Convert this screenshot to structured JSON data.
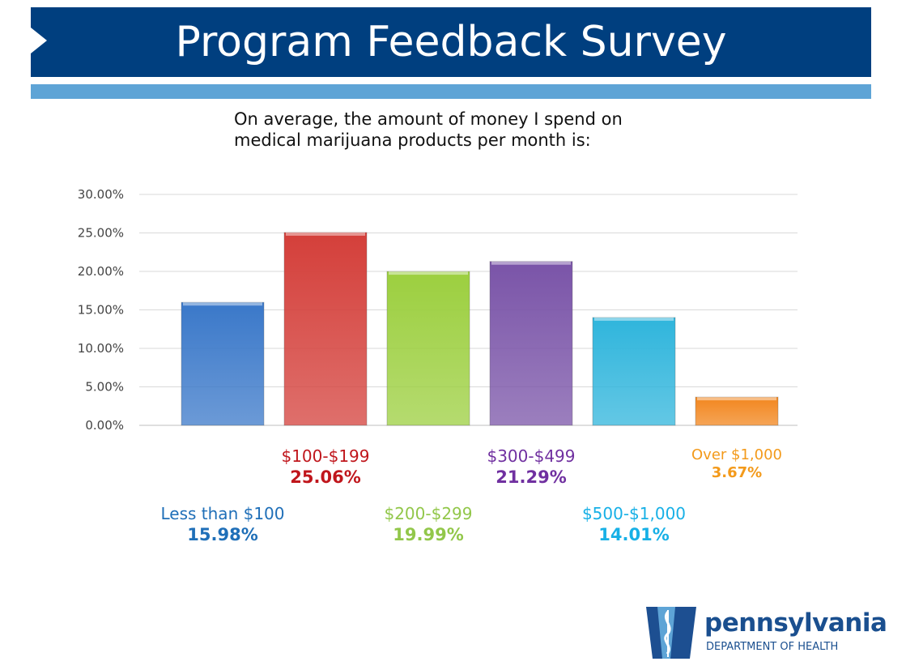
{
  "header": {
    "title": "Program Feedback Survey"
  },
  "question": "On average, the amount of money I spend on\nmedical marijuana products per month is:",
  "colors": {
    "title_bar": "#003f7f",
    "sub_bar": "#5ea4d6"
  },
  "chart_data": {
    "type": "bar",
    "title": "",
    "xlabel": "",
    "ylabel": "",
    "ylim": [
      0,
      30
    ],
    "y_ticks": [
      "0.00%",
      "5.00%",
      "10.00%",
      "15.00%",
      "20.00%",
      "25.00%",
      "30.00%"
    ],
    "grid": true,
    "categories": [
      "Less than $100",
      "$100-$199",
      "$200-$299",
      "$300-$499",
      "$500-$1,000",
      "Over $1,000"
    ],
    "values": [
      15.98,
      25.06,
      19.99,
      21.29,
      14.01,
      3.67
    ],
    "value_labels": [
      "15.98%",
      "25.06%",
      "19.99%",
      "21.29%",
      "14.01%",
      "3.67%"
    ],
    "bar_colors": [
      "#3a78c9",
      "#d43f3a",
      "#9ccf3f",
      "#7a54a8",
      "#2fb5dc",
      "#f2861e"
    ],
    "label_colors": [
      "#1f6fb8",
      "#c0161c",
      "#92c74a",
      "#7030a0",
      "#17b0e6",
      "#f39a1b"
    ]
  },
  "logo": {
    "name": "pennsylvania",
    "department": "DEPARTMENT OF HEALTH"
  }
}
